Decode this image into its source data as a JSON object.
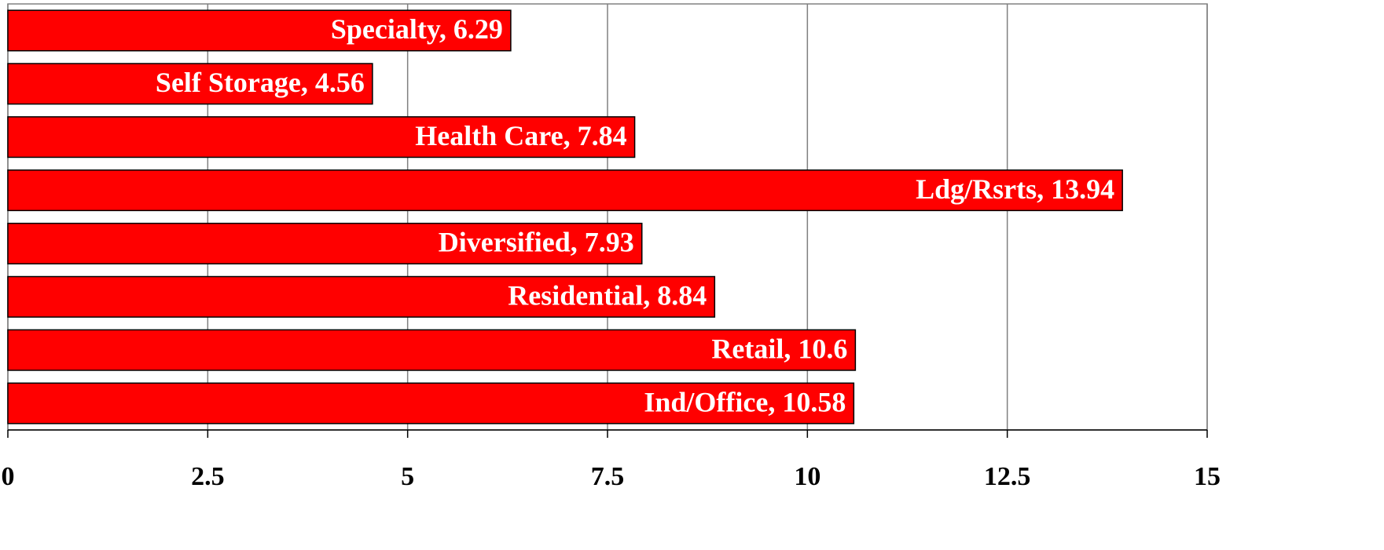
{
  "chart_data": {
    "type": "hbar",
    "values": [
      6.29,
      4.56,
      7.84,
      13.94,
      7.93,
      8.84,
      10.6,
      10.58
    ],
    "value_labels": [
      "Specialty, 6.29",
      "Self Storage, 4.56",
      "Health Care, 7.84",
      "Ldg/Rsrts, 13.94",
      "Diversified, 7.93",
      "Residential, 8.84",
      "Retail, 10.6",
      "Ind/Office, 10.58"
    ],
    "color": "#ff0000",
    "xlim": [
      0,
      15
    ],
    "xticks": [
      0,
      2.5,
      5,
      7.5,
      10,
      12.5,
      15
    ],
    "grid": true
  }
}
